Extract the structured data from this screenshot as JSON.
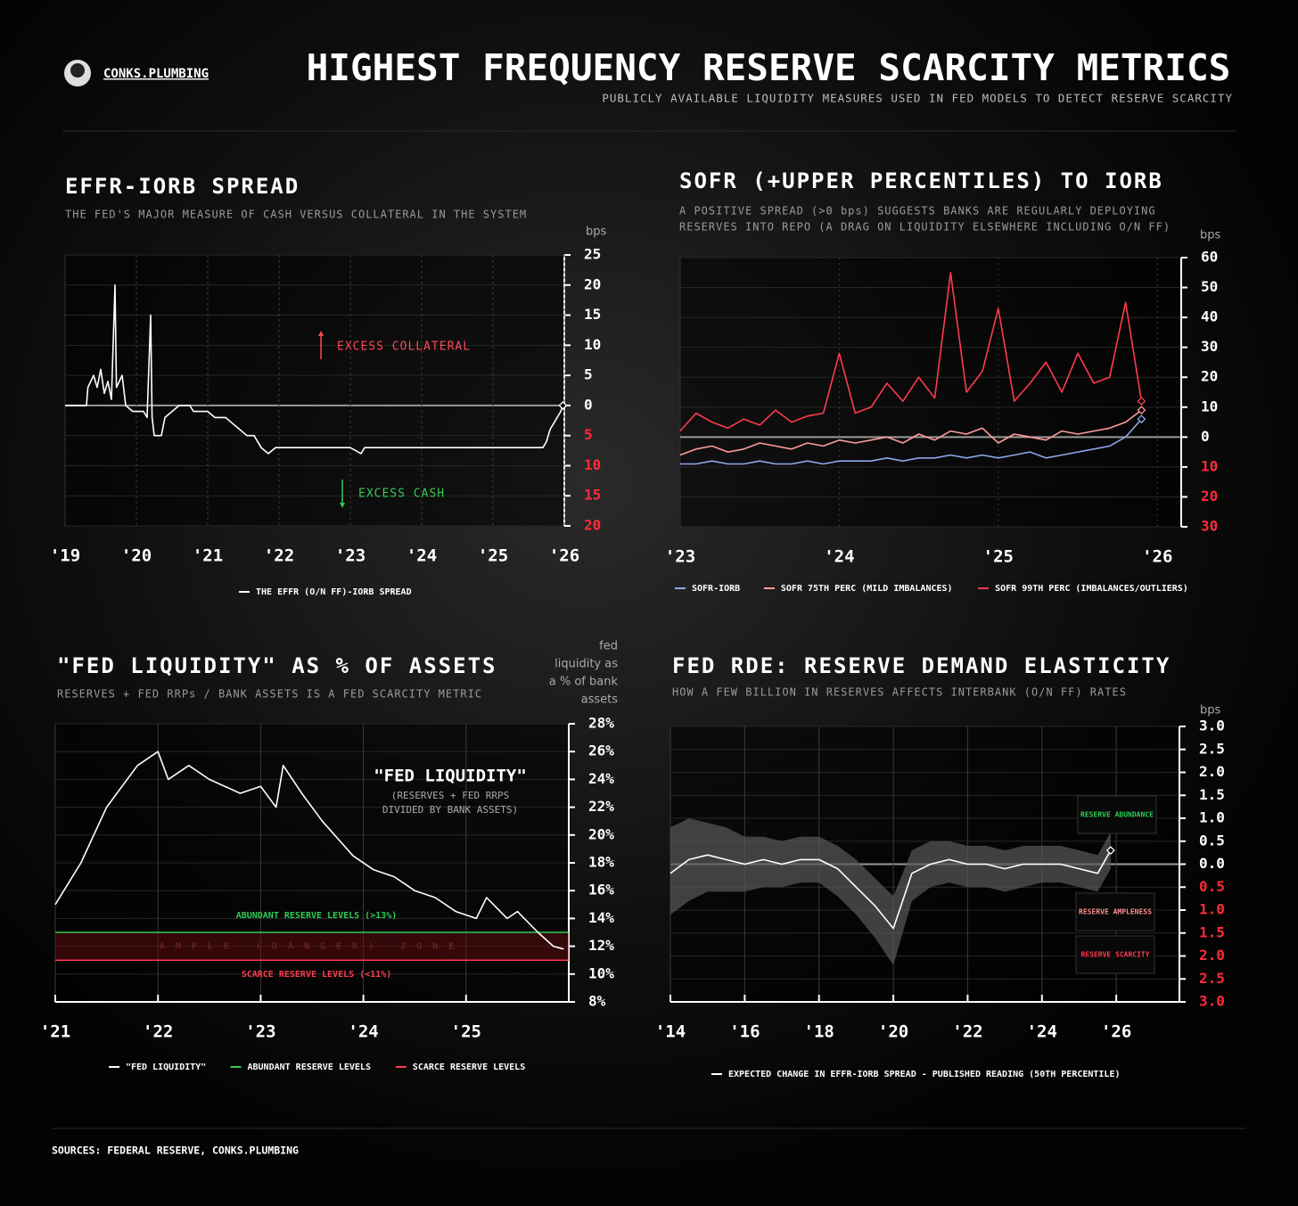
{
  "header": {
    "brand": "CONKS.PLUMBING",
    "title": "HIGHEST FREQUENCY RESERVE SCARCITY METRICS",
    "subtitle": "PUBLICLY AVAILABLE LIQUIDITY MEASURES USED IN FED MODELS TO DETECT RESERVE SCARCITY"
  },
  "footer": {
    "sources": "SOURCES: FEDERAL RESERVE, CONKS.PLUMBING"
  },
  "chart_data": [
    {
      "type": "line",
      "title": "EFFR-IORB SPREAD",
      "subtitle": "THE FED'S MAJOR MEASURE OF CASH VERSUS COLLATERAL IN THE SYSTEM",
      "y_label": "bps",
      "x": [
        2019.0,
        2019.3,
        2019.32,
        2019.4,
        2019.45,
        2019.5,
        2019.55,
        2019.6,
        2019.65,
        2019.7,
        2019.72,
        2019.8,
        2019.85,
        2019.95,
        2020.1,
        2020.15,
        2020.2,
        2020.22,
        2020.25,
        2020.35,
        2020.4,
        2020.5,
        2020.6,
        2020.75,
        2020.8,
        2021.0,
        2021.1,
        2021.25,
        2021.35,
        2021.45,
        2021.55,
        2021.65,
        2021.75,
        2021.85,
        2021.95,
        2022.2,
        2022.5,
        2023.0,
        2023.15,
        2023.2,
        2023.5,
        2024.0,
        2024.5,
        2025.0,
        2025.5,
        2025.7,
        2025.75,
        2025.8,
        2025.85,
        2025.9,
        2025.95,
        2025.98
      ],
      "series": [
        {
          "name": "THE EFFR (O/N FF)-IORB SPREAD",
          "color": "#ffffff",
          "values": [
            0,
            0,
            3,
            5,
            3,
            6,
            2,
            4,
            1,
            20,
            3,
            5,
            0,
            -1,
            -1,
            -2,
            15,
            -2,
            -5,
            -5,
            -2,
            -1,
            0,
            0,
            -1,
            -1,
            -2,
            -2,
            -3,
            -4,
            -5,
            -5,
            -7,
            -8,
            -7,
            -7,
            -7,
            -7,
            -8,
            -7,
            -7,
            -7,
            -7,
            -7,
            -7,
            -7,
            -6,
            -4,
            -3,
            -2,
            -1,
            0
          ]
        }
      ],
      "xlim": [
        2019,
        2026
      ],
      "xticks": [
        {
          "value": 2019,
          "label": "'19"
        },
        {
          "value": 2020,
          "label": "'20"
        },
        {
          "value": 2021,
          "label": "'21"
        },
        {
          "value": 2022,
          "label": "'22"
        },
        {
          "value": 2023,
          "label": "'23"
        },
        {
          "value": 2024,
          "label": "'24"
        },
        {
          "value": 2025,
          "label": "'25"
        },
        {
          "value": 2026,
          "label": "'26"
        }
      ],
      "ylim": [
        -20,
        25
      ],
      "yticks": [
        25,
        20,
        15,
        10,
        5,
        0,
        {
          "value": -5,
          "label": "5"
        },
        {
          "value": -10,
          "label": "10"
        },
        {
          "value": -15,
          "label": "15"
        },
        {
          "value": -20,
          "label": "20"
        }
      ],
      "grid": true,
      "annotations": [
        {
          "text": "EXCESS COLLATERAL",
          "color": "#ff4757"
        },
        {
          "text": "EXCESS CASH",
          "color": "#2ecc55"
        }
      ]
    },
    {
      "type": "line",
      "title": "SOFR (+UPPER PERCENTILES) TO IORB",
      "subtitle": [
        "A POSITIVE SPREAD (>0 bps) SUGGESTS BANKS ARE REGULARLY DEPLOYING",
        "RESERVES INTO REPO (A DRAG ON LIQUIDITY ELSEWHERE INCLUDING O/N FF)"
      ],
      "y_label": "bps",
      "x": [
        2023.0,
        2023.1,
        2023.2,
        2023.3,
        2023.4,
        2023.5,
        2023.6,
        2023.7,
        2023.8,
        2023.9,
        2024.0,
        2024.1,
        2024.2,
        2024.3,
        2024.4,
        2024.5,
        2024.6,
        2024.7,
        2024.8,
        2024.9,
        2025.0,
        2025.1,
        2025.2,
        2025.3,
        2025.4,
        2025.5,
        2025.6,
        2025.7,
        2025.8,
        2025.9
      ],
      "series": [
        {
          "name": "SOFR-IORB",
          "color": "#8aa8e8",
          "values": [
            -9,
            -9,
            -8,
            -9,
            -9,
            -8,
            -9,
            -9,
            -8,
            -9,
            -8,
            -8,
            -8,
            -7,
            -8,
            -7,
            -7,
            -6,
            -7,
            -6,
            -7,
            -6,
            -5,
            -7,
            -6,
            -5,
            -4,
            -3,
            0,
            6
          ]
        },
        {
          "name": "SOFR 75TH PERC (MILD IMBALANCES)",
          "color": "#ff9a9a",
          "values": [
            -6,
            -4,
            -3,
            -5,
            -4,
            -2,
            -3,
            -4,
            -2,
            -3,
            -1,
            -2,
            -1,
            0,
            -2,
            1,
            -1,
            2,
            1,
            3,
            -2,
            1,
            0,
            -1,
            2,
            1,
            2,
            3,
            5,
            9
          ]
        },
        {
          "name": "SOFR 99TH PERC (IMBALANCES/OUTLIERS)",
          "color": "#ff3b4e",
          "values": [
            2,
            8,
            5,
            3,
            6,
            4,
            9,
            5,
            7,
            8,
            28,
            8,
            10,
            18,
            12,
            20,
            13,
            55,
            15,
            22,
            43,
            12,
            18,
            25,
            15,
            28,
            18,
            20,
            45,
            12
          ]
        }
      ],
      "xlim": [
        2023,
        2026.15
      ],
      "xticks": [
        {
          "value": 2023,
          "label": "'23"
        },
        {
          "value": 2024,
          "label": "'24"
        },
        {
          "value": 2025,
          "label": "'25"
        },
        {
          "value": 2026,
          "label": "'26"
        }
      ],
      "ylim": [
        -30,
        60
      ],
      "yticks": [
        60,
        50,
        40,
        30,
        20,
        10,
        0,
        {
          "value": -10,
          "label": "10"
        },
        {
          "value": -20,
          "label": "20"
        },
        {
          "value": -30,
          "label": "30"
        }
      ],
      "grid": true
    },
    {
      "type": "line",
      "title": "\"FED LIQUIDITY\" AS % OF ASSETS",
      "subtitle": "RESERVES + FED RRPs / BANK ASSETS IS A FED SCARCITY METRIC",
      "y_label": [
        "fed",
        "liquidity as",
        "a % of bank",
        "assets"
      ],
      "x": [
        2021.0,
        2021.25,
        2021.5,
        2021.8,
        2022.0,
        2022.1,
        2022.3,
        2022.5,
        2022.8,
        2023.0,
        2023.15,
        2023.22,
        2023.4,
        2023.6,
        2023.9,
        2024.1,
        2024.3,
        2024.5,
        2024.7,
        2024.9,
        2025.1,
        2025.2,
        2025.4,
        2025.5,
        2025.7,
        2025.85,
        2025.95
      ],
      "series": [
        {
          "name": "\"FED LIQUIDITY\"",
          "color": "#ffffff",
          "values": [
            15,
            18,
            22,
            25,
            26,
            24,
            25,
            24,
            23,
            23.5,
            22,
            25,
            23,
            21,
            18.5,
            17.5,
            17,
            16,
            15.5,
            14.5,
            14,
            15.5,
            14,
            14.5,
            13,
            12,
            11.8
          ]
        }
      ],
      "thresholds": [
        {
          "name": "ABUNDANT RESERVE LEVELS",
          "label": "ABUNDANT RESERVE LEVELS (>13%)",
          "value": 13,
          "color": "#2ecc55"
        },
        {
          "name": "SCARCE RESERVE LEVELS",
          "label": "SCARCE RESERVE LEVELS (<11%)",
          "value": 11,
          "color": "#ff3b4e"
        }
      ],
      "zone_label": "AMPLE (DANGER) ZONE",
      "xlim": [
        2021,
        2026
      ],
      "xticks": [
        {
          "value": 2021,
          "label": "'21"
        },
        {
          "value": 2022,
          "label": "'22"
        },
        {
          "value": 2023,
          "label": "'23"
        },
        {
          "value": 2024,
          "label": "'24"
        },
        {
          "value": 2025,
          "label": "'25"
        }
      ],
      "ylim": [
        8,
        28
      ],
      "yticks": [
        {
          "value": 28,
          "label": "28%"
        },
        {
          "value": 26,
          "label": "26%"
        },
        {
          "value": 24,
          "label": "24%"
        },
        {
          "value": 22,
          "label": "22%"
        },
        {
          "value": 20,
          "label": "20%"
        },
        {
          "value": 18,
          "label": "18%"
        },
        {
          "value": 16,
          "label": "16%"
        },
        {
          "value": 14,
          "label": "14%"
        },
        {
          "value": 12,
          "label": "12%"
        },
        {
          "value": 10,
          "label": "10%"
        },
        {
          "value": 8,
          "label": "8%"
        }
      ],
      "grid": true,
      "annotations": [
        {
          "text": "\"FED LIQUIDITY\"",
          "color": "#ffffff"
        },
        {
          "text": "(RESERVES + FED RRPS",
          "color": "#aaaaaa"
        },
        {
          "text": "DIVIDED BY BANK ASSETS)",
          "color": "#aaaaaa"
        }
      ]
    },
    {
      "type": "line",
      "title": "FED RDE: RESERVE DEMAND ELASTICITY",
      "subtitle": "HOW A FEW BILLION IN RESERVES AFFECTS INTERBANK (O/N FF) RATES",
      "y_label": "bps",
      "x": [
        2014.0,
        2014.5,
        2015.0,
        2015.5,
        2016.0,
        2016.5,
        2017.0,
        2017.5,
        2018.0,
        2018.5,
        2019.0,
        2019.5,
        2020.0,
        2020.5,
        2021.0,
        2021.5,
        2022.0,
        2022.5,
        2023.0,
        2023.5,
        2024.0,
        2024.5,
        2025.0,
        2025.5,
        2025.85
      ],
      "series": [
        {
          "name": "EXPECTED CHANGE IN EFFR-IORB SPREAD - PUBLISHED READING (50TH PERCENTILE)",
          "color": "#ffffff",
          "values": [
            -0.2,
            0.1,
            0.2,
            0.1,
            0.0,
            0.1,
            0.0,
            0.1,
            0.1,
            -0.1,
            -0.5,
            -0.9,
            -1.4,
            -0.2,
            0.0,
            0.1,
            0.0,
            0.0,
            -0.1,
            0.0,
            0.0,
            0.0,
            -0.1,
            -0.2,
            0.3
          ]
        }
      ],
      "band": {
        "color": "#5a5a5a",
        "high": [
          0.8,
          1.0,
          0.9,
          0.8,
          0.6,
          0.6,
          0.5,
          0.6,
          0.6,
          0.4,
          0.1,
          -0.3,
          -0.7,
          0.3,
          0.5,
          0.5,
          0.4,
          0.4,
          0.3,
          0.4,
          0.4,
          0.4,
          0.3,
          0.2,
          0.7
        ],
        "low": [
          -1.1,
          -0.8,
          -0.6,
          -0.6,
          -0.6,
          -0.5,
          -0.5,
          -0.4,
          -0.4,
          -0.7,
          -1.1,
          -1.6,
          -2.2,
          -0.8,
          -0.5,
          -0.4,
          -0.5,
          -0.5,
          -0.6,
          -0.5,
          -0.4,
          -0.4,
          -0.5,
          -0.6,
          -0.1
        ]
      },
      "xlim": [
        2014,
        2027.7
      ],
      "xticks": [
        {
          "value": 2014,
          "label": "'14"
        },
        {
          "value": 2016,
          "label": "'16"
        },
        {
          "value": 2018,
          "label": "'18"
        },
        {
          "value": 2020,
          "label": "'20"
        },
        {
          "value": 2022,
          "label": "'22"
        },
        {
          "value": 2024,
          "label": "'24"
        },
        {
          "value": 2026,
          "label": "'26"
        }
      ],
      "ylim": [
        -3,
        3
      ],
      "yticks": [
        {
          "value": 3,
          "label": "3.0"
        },
        {
          "value": 2.5,
          "label": "2.5"
        },
        {
          "value": 2,
          "label": "2.0"
        },
        {
          "value": 1.5,
          "label": "1.5"
        },
        {
          "value": 1,
          "label": "1.0"
        },
        {
          "value": 0.5,
          "label": "0.5"
        },
        {
          "value": 0,
          "label": "0.0"
        },
        {
          "value": -0.5,
          "label": "0.5"
        },
        {
          "value": -1,
          "label": "1.0"
        },
        {
          "value": -1.5,
          "label": "1.5"
        },
        {
          "value": -2,
          "label": "2.0"
        },
        {
          "value": -2.5,
          "label": "2.5"
        },
        {
          "value": -3,
          "label": "3.0"
        }
      ],
      "grid": true,
      "annotations": [
        {
          "text": "RESERVE ABUNDANCE",
          "color": "#2ecc55"
        },
        {
          "text": "RESERVE AMPLENESS",
          "color": "#ff8f8f"
        },
        {
          "text": "RESERVE SCARCITY",
          "color": "#ff3b4e"
        }
      ]
    }
  ]
}
